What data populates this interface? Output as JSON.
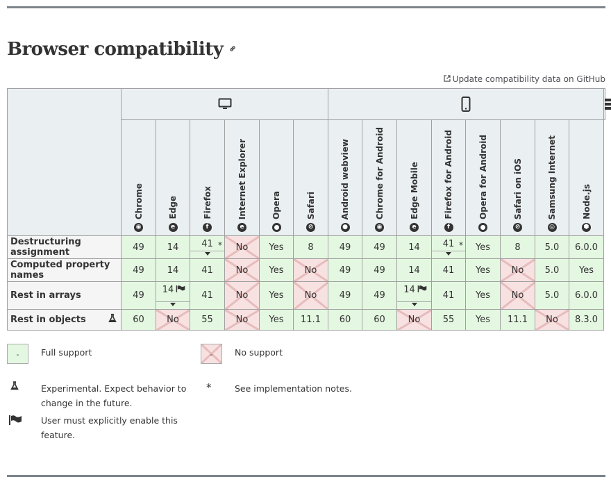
{
  "section": {
    "title": "Browser compatibility",
    "anchor_icon": "link-icon",
    "github_link": "Update compatibility data on GitHub"
  },
  "platforms": [
    {
      "name": "desktop",
      "icon": "monitor-icon",
      "span": 6
    },
    {
      "name": "mobile",
      "icon": "phone-icon",
      "span": 8
    },
    {
      "name": "server",
      "icon": "server-icon",
      "span": 1
    }
  ],
  "browsers": [
    {
      "label": "Chrome",
      "icon": "chrome-icon",
      "glyph": "◉"
    },
    {
      "label": "Edge",
      "icon": "edge-icon",
      "glyph": "e"
    },
    {
      "label": "Firefox",
      "icon": "firefox-icon",
      "glyph": "f"
    },
    {
      "label": "Internet Explorer",
      "icon": "ie-icon",
      "glyph": "e"
    },
    {
      "label": "Opera",
      "icon": "opera-icon",
      "glyph": "O"
    },
    {
      "label": "Safari",
      "icon": "safari-icon",
      "glyph": "⊘"
    },
    {
      "label": "Android webview",
      "icon": "android-icon",
      "glyph": "●"
    },
    {
      "label": "Chrome for Android",
      "icon": "chrome-icon",
      "glyph": "◉"
    },
    {
      "label": "Edge Mobile",
      "icon": "edge-icon",
      "glyph": "e"
    },
    {
      "label": "Firefox for Android",
      "icon": "firefox-icon",
      "glyph": "f"
    },
    {
      "label": "Opera for Android",
      "icon": "opera-icon",
      "glyph": "O"
    },
    {
      "label": "Safari on iOS",
      "icon": "safari-icon",
      "glyph": "⊘"
    },
    {
      "label": "Samsung Internet",
      "icon": "samsung-icon",
      "glyph": "◎"
    },
    {
      "label": "Node.js",
      "icon": "nodejs-icon",
      "glyph": "⬢"
    }
  ],
  "rows": [
    {
      "feature": "Destructuring assignment",
      "experimental": false,
      "cells": [
        {
          "v": "49",
          "s": "yes"
        },
        {
          "v": "14",
          "s": "yes"
        },
        {
          "v": "41",
          "s": "yes",
          "star": true,
          "more": true
        },
        {
          "v": "No",
          "s": "no"
        },
        {
          "v": "Yes",
          "s": "yes"
        },
        {
          "v": "8",
          "s": "yes"
        },
        {
          "v": "49",
          "s": "yes"
        },
        {
          "v": "49",
          "s": "yes"
        },
        {
          "v": "14",
          "s": "yes"
        },
        {
          "v": "41",
          "s": "yes",
          "star": true,
          "more": true
        },
        {
          "v": "Yes",
          "s": "yes"
        },
        {
          "v": "8",
          "s": "yes"
        },
        {
          "v": "5.0",
          "s": "yes"
        },
        {
          "v": "6.0.0",
          "s": "yes"
        }
      ]
    },
    {
      "feature": "Computed property names",
      "experimental": false,
      "cells": [
        {
          "v": "49",
          "s": "yes"
        },
        {
          "v": "14",
          "s": "yes"
        },
        {
          "v": "41",
          "s": "yes"
        },
        {
          "v": "No",
          "s": "no"
        },
        {
          "v": "Yes",
          "s": "yes"
        },
        {
          "v": "No",
          "s": "no"
        },
        {
          "v": "49",
          "s": "yes"
        },
        {
          "v": "49",
          "s": "yes"
        },
        {
          "v": "14",
          "s": "yes"
        },
        {
          "v": "41",
          "s": "yes"
        },
        {
          "v": "Yes",
          "s": "yes"
        },
        {
          "v": "No",
          "s": "no"
        },
        {
          "v": "5.0",
          "s": "yes"
        },
        {
          "v": "Yes",
          "s": "yes"
        }
      ]
    },
    {
      "feature": "Rest in arrays",
      "experimental": false,
      "cells": [
        {
          "v": "49",
          "s": "yes"
        },
        {
          "v": "14",
          "s": "yes",
          "flag": true,
          "more": true
        },
        {
          "v": "41",
          "s": "yes"
        },
        {
          "v": "No",
          "s": "no"
        },
        {
          "v": "Yes",
          "s": "yes"
        },
        {
          "v": "No",
          "s": "no"
        },
        {
          "v": "49",
          "s": "yes"
        },
        {
          "v": "49",
          "s": "yes"
        },
        {
          "v": "14",
          "s": "yes",
          "flag": true,
          "more": true
        },
        {
          "v": "41",
          "s": "yes"
        },
        {
          "v": "Yes",
          "s": "yes"
        },
        {
          "v": "No",
          "s": "no"
        },
        {
          "v": "5.0",
          "s": "yes"
        },
        {
          "v": "6.0.0",
          "s": "yes"
        }
      ]
    },
    {
      "feature": "Rest in objects",
      "experimental": true,
      "cells": [
        {
          "v": "60",
          "s": "yes"
        },
        {
          "v": "No",
          "s": "no"
        },
        {
          "v": "55",
          "s": "yes"
        },
        {
          "v": "No",
          "s": "no"
        },
        {
          "v": "Yes",
          "s": "yes"
        },
        {
          "v": "11.1",
          "s": "yes"
        },
        {
          "v": "60",
          "s": "yes"
        },
        {
          "v": "60",
          "s": "yes"
        },
        {
          "v": "No",
          "s": "no"
        },
        {
          "v": "55",
          "s": "yes"
        },
        {
          "v": "Yes",
          "s": "yes"
        },
        {
          "v": "11.1",
          "s": "yes"
        },
        {
          "v": "No",
          "s": "no"
        },
        {
          "v": "8.3.0",
          "s": "yes"
        }
      ]
    }
  ],
  "legend": {
    "full_support": "Full support",
    "no_support": "No support",
    "swatch_symbol": "-",
    "experimental": "Experimental. Expect behavior to change in the future.",
    "notes": "See implementation notes.",
    "notes_symbol": "*",
    "flag": "User must explicitly enable this feature."
  },
  "colors": {
    "supported": "#e4f8e1",
    "unsupported": "#f8e1e1",
    "header": "#eaeff2",
    "rule": "#7d858b"
  }
}
